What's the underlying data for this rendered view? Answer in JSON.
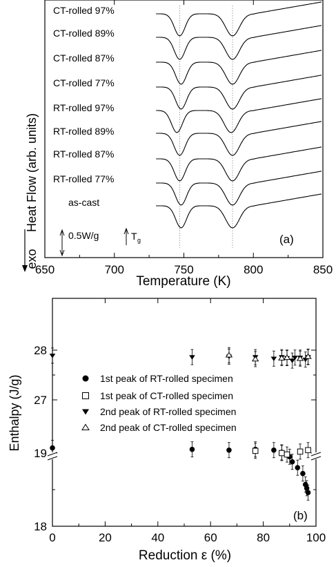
{
  "chart_data": [
    {
      "type": "line",
      "panel_label": "(a)",
      "xlabel": "Temperature (K)",
      "ylabel": "Heat Flow (arb. units)",
      "ylabel_prefix": "exo",
      "xlim": [
        650,
        850
      ],
      "xticks": [
        650,
        700,
        750,
        800,
        850
      ],
      "scale_bar_label": "0.5W/g",
      "tg_label": "T",
      "tg_sub": "g",
      "peak_markers_K": [
        747,
        785
      ],
      "series": [
        {
          "name": "CT-rolled 97%",
          "peak1_K": 747,
          "peak2_K": 785,
          "onset_K": 730,
          "end_K": 800
        },
        {
          "name": "CT-rolled 89%",
          "peak1_K": 747,
          "peak2_K": 785,
          "onset_K": 730,
          "end_K": 800
        },
        {
          "name": "CT-rolled 87%",
          "peak1_K": 748,
          "peak2_K": 785,
          "onset_K": 731,
          "end_K": 800
        },
        {
          "name": "CT-rolled 77%",
          "peak1_K": 748,
          "peak2_K": 785,
          "onset_K": 731,
          "end_K": 800
        },
        {
          "name": "RT-rolled 97%",
          "peak1_K": 745,
          "peak2_K": 784,
          "onset_K": 728,
          "end_K": 800
        },
        {
          "name": "RT-rolled 89%",
          "peak1_K": 747,
          "peak2_K": 785,
          "onset_K": 730,
          "end_K": 800
        },
        {
          "name": "RT-rolled 87%",
          "peak1_K": 747,
          "peak2_K": 785,
          "onset_K": 730,
          "end_K": 800
        },
        {
          "name": "RT-rolled 77%",
          "peak1_K": 748,
          "peak2_K": 785,
          "onset_K": 731,
          "end_K": 800
        },
        {
          "name": "as-cast",
          "peak1_K": 748,
          "peak2_K": 785,
          "onset_K": 731,
          "end_K": 800
        }
      ]
    },
    {
      "type": "scatter",
      "panel_label": "(b)",
      "xlabel": "Reduction ε (%)",
      "ylabel": "Enthalpy (J/g)",
      "xlim": [
        0,
        100
      ],
      "xticks": [
        0,
        20,
        40,
        60,
        80,
        100
      ],
      "y_axis_break": true,
      "ylim_lower": [
        18,
        19.7
      ],
      "ylim_upper": [
        26.6,
        28.7
      ],
      "yticks": [
        18,
        19,
        27,
        28
      ],
      "series": [
        {
          "name": "1st peak of RT-rolled specimen",
          "marker": "circle-filled",
          "x": [
            0,
            53,
            67,
            77,
            84,
            87,
            90,
            91,
            93,
            95,
            96,
            96.5,
            97
          ],
          "y": [
            19.07,
            19.05,
            19.04,
            19.05,
            19.04,
            19.01,
            18.95,
            18.88,
            18.8,
            18.72,
            18.57,
            18.52,
            18.46
          ]
        },
        {
          "name": "1st peak of CT-rolled specimen",
          "marker": "square-open",
          "x": [
            77,
            87,
            89,
            94,
            97
          ],
          "y": [
            19.03,
            19.0,
            18.98,
            19.02,
            19.04
          ]
        },
        {
          "name": "2nd peak of RT-rolled specimen",
          "marker": "triangle-down-filled",
          "x": [
            0,
            53,
            67,
            77,
            84,
            87,
            89,
            91,
            92,
            94,
            96,
            97
          ],
          "y": [
            27.89,
            27.86,
            27.87,
            27.86,
            27.83,
            27.86,
            27.84,
            27.79,
            27.85,
            27.85,
            27.81,
            27.86
          ]
        },
        {
          "name": "2nd peak of CT-rolled specimen",
          "marker": "triangle-up-open",
          "x": [
            67,
            77,
            87,
            89,
            94,
            97
          ],
          "y": [
            27.9,
            27.82,
            27.84,
            27.85,
            27.83,
            27.87
          ]
        }
      ]
    }
  ]
}
